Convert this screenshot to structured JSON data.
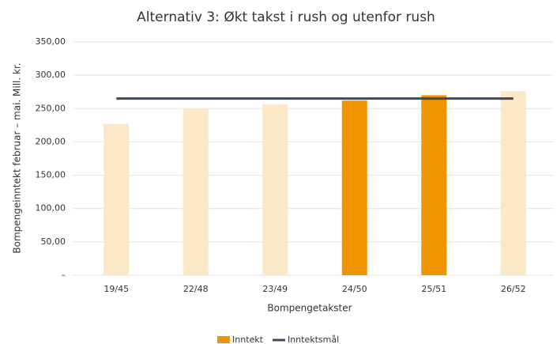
{
  "chart_data": {
    "type": "bar",
    "title": "Alternativ 3: Økt takst i rush og utenfor rush",
    "x_label": "Bompengetakster",
    "y_label": "Bompengeinntekt februar – mai. Mill. kr.",
    "categories": [
      "19/45",
      "22/48",
      "23/49",
      "24/50",
      "25/51",
      "26/52"
    ],
    "series": [
      {
        "name": "Inntekt",
        "type": "bar",
        "color": "#ef9500",
        "values": [
          227,
          249,
          256,
          262,
          270,
          276
        ],
        "colors": [
          "#fbe8c6",
          "#fbe8c6",
          "#fbe8c6",
          "#ef9500",
          "#ef9500",
          "#fbe8c6"
        ]
      },
      {
        "name": "Inntektsmål",
        "type": "line",
        "color": "#3d4a57",
        "values": [
          265,
          265,
          265,
          265,
          265,
          265
        ]
      }
    ],
    "ylim": [
      0,
      350
    ],
    "yticks": [
      {
        "value": 0,
        "label": "–"
      },
      {
        "value": 50,
        "label": "50,00"
      },
      {
        "value": 100,
        "label": "100,00"
      },
      {
        "value": 150,
        "label": "150,00"
      },
      {
        "value": 200,
        "label": "200,00"
      },
      {
        "value": 250,
        "label": "250,00"
      },
      {
        "value": 300,
        "label": "300,00"
      },
      {
        "value": 350,
        "label": "350,00"
      }
    ],
    "grid": true,
    "legend": "bottom"
  }
}
